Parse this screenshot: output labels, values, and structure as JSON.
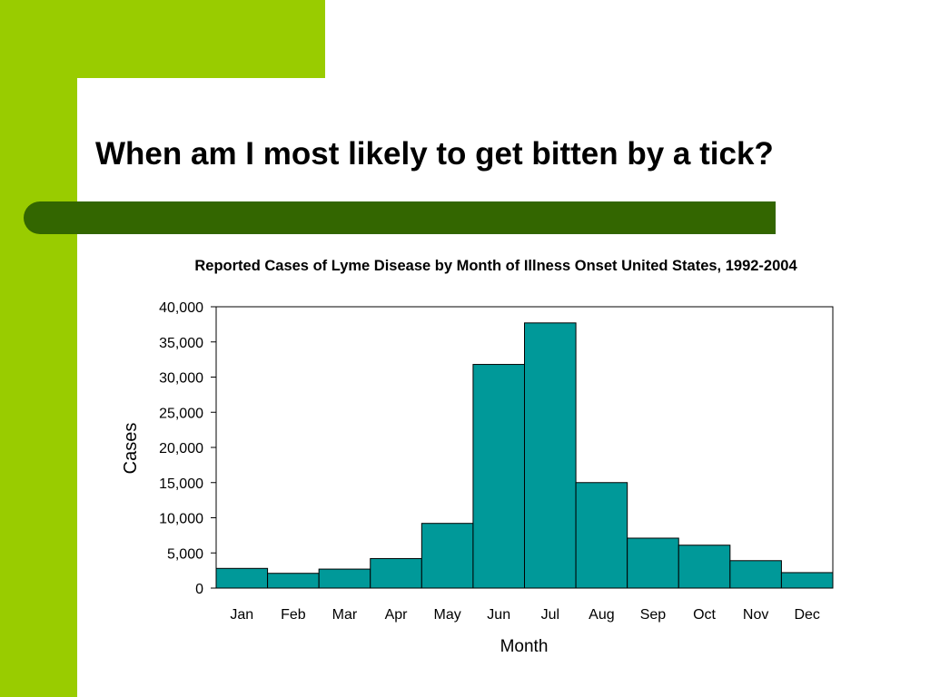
{
  "slide": {
    "title": "When am I most likely to get bitten by a tick?"
  },
  "colors": {
    "accent_green": "#99CC00",
    "bar_green": "#336600",
    "bar_fill": "#009999",
    "bar_stroke": "#000000"
  },
  "chart_data": {
    "type": "bar",
    "title": "Reported Cases of Lyme Disease by Month of Illness Onset United States, 1992-2004",
    "xlabel": "Month",
    "ylabel": "Cases",
    "categories": [
      "Jan",
      "Feb",
      "Mar",
      "Apr",
      "May",
      "Jun",
      "Jul",
      "Aug",
      "Sep",
      "Oct",
      "Nov",
      "Dec"
    ],
    "values": [
      2800,
      2100,
      2700,
      4200,
      9200,
      31800,
      37700,
      15000,
      7100,
      6100,
      3900,
      2200
    ],
    "yticks": [
      "0",
      "5,000",
      "10,000",
      "15,000",
      "20,000",
      "25,000",
      "30,000",
      "35,000",
      "40,000"
    ],
    "ylim": [
      0,
      40000
    ],
    "grid": false,
    "legend": "none"
  }
}
